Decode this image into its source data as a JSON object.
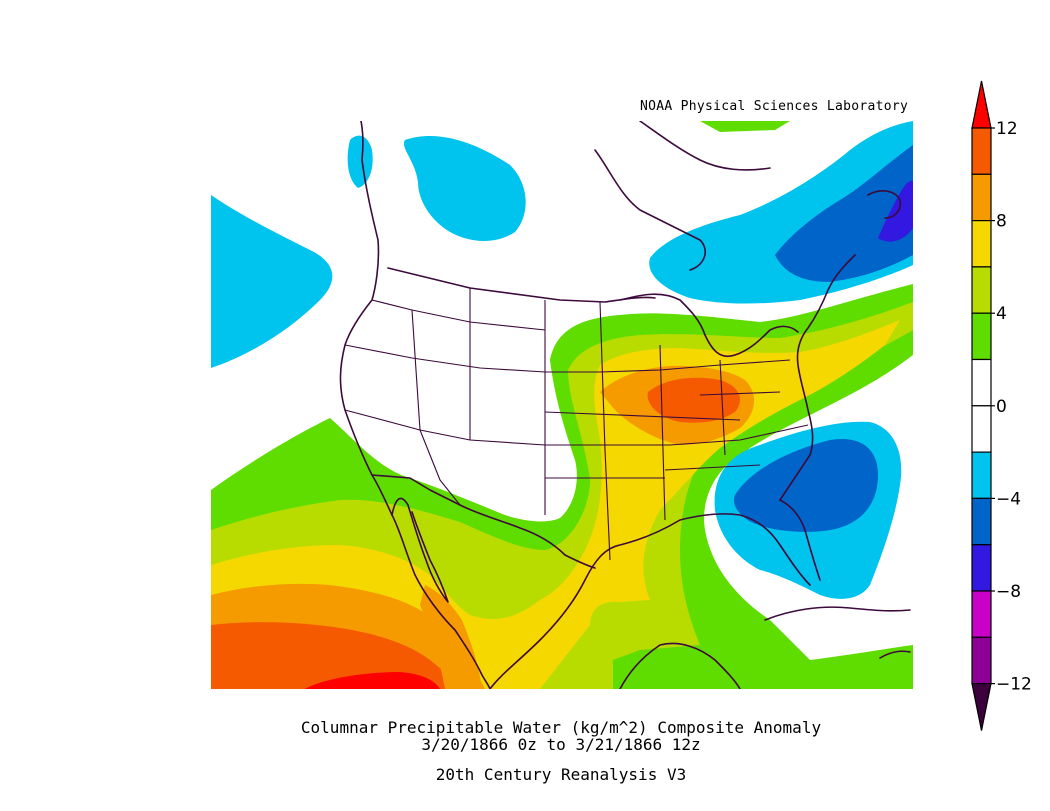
{
  "credit": "NOAA Physical Sciences Laboratory",
  "title_line1": "Columnar Precipitable Water (kg/m^2)   Composite Anomaly",
  "title_line2": "3/20/1866 0z  to 3/21/1866 12z",
  "dataset": "20th Century Reanalysis V3",
  "colorbar": {
    "tick_labels": [
      "12",
      "8",
      "4",
      "0",
      "−4",
      "−8",
      "−12"
    ],
    "bins": [
      {
        "range": "10 to 12",
        "color": "#f55a00"
      },
      {
        "range": "8 to 10",
        "color": "#f59b00"
      },
      {
        "range": "6 to 8",
        "color": "#f5d800"
      },
      {
        "range": "4 to 6",
        "color": "#b8dc00"
      },
      {
        "range": "2 to 4",
        "color": "#5fdc00"
      },
      {
        "range": "0 to 2",
        "color": "#ffffff"
      },
      {
        "range": "-2 to 0",
        "color": "#ffffff"
      },
      {
        "range": "-4 to -2",
        "color": "#00c3ee"
      },
      {
        "range": "-6 to -4",
        "color": "#0064c8"
      },
      {
        "range": "-8 to -6",
        "color": "#3218e0"
      },
      {
        "range": "-10 to -8",
        "color": "#c800c8"
      },
      {
        "range": "-12 to -10",
        "color": "#8c0096"
      }
    ],
    "overflow_top_color": "#ff0000",
    "overflow_bottom_color": "#3c003c"
  }
}
